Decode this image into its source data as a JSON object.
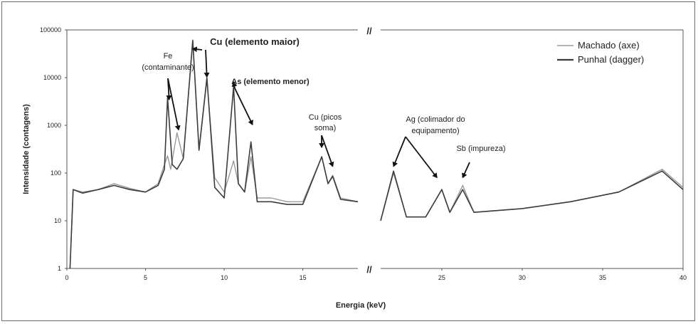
{
  "chart_data": {
    "type": "line",
    "xlabel": "Energia (keV)",
    "ylabel": "Intensidade (contagens)",
    "y_scale": "log",
    "ylim": [
      1,
      100000
    ],
    "y_ticks": [
      "1",
      "10",
      "100",
      "1000",
      "10000",
      "100000"
    ],
    "x_segments": [
      {
        "xlim": [
          0,
          18.5
        ],
        "ticks": [
          "0",
          "5",
          "10",
          "15"
        ]
      },
      {
        "xlim": [
          21.2,
          40
        ],
        "ticks": [
          "25",
          "30",
          "35",
          "40"
        ]
      }
    ],
    "break_mark": "//",
    "grid": false,
    "legend": {
      "placement": "top-right",
      "entries": [
        "Machado (axe)",
        "Punhal (dagger)"
      ]
    },
    "series": [
      {
        "name": "Machado (axe)",
        "color": "#9a9a9a",
        "points": [
          [
            0.2,
            1
          ],
          [
            0.4,
            45
          ],
          [
            1,
            40
          ],
          [
            2,
            45
          ],
          [
            3,
            60
          ],
          [
            4,
            48
          ],
          [
            5,
            40
          ],
          [
            5.8,
            60
          ],
          [
            6.2,
            150
          ],
          [
            6.4,
            230
          ],
          [
            6.6,
            120
          ],
          [
            7.0,
            700
          ],
          [
            7.4,
            200
          ],
          [
            8.0,
            62000
          ],
          [
            8.4,
            300
          ],
          [
            8.9,
            9000
          ],
          [
            9.4,
            80
          ],
          [
            10.0,
            40
          ],
          [
            10.6,
            180
          ],
          [
            10.9,
            60
          ],
          [
            11.3,
            40
          ],
          [
            11.7,
            220
          ],
          [
            12.1,
            30
          ],
          [
            13,
            30
          ],
          [
            14,
            25
          ],
          [
            15,
            25
          ],
          [
            16.2,
            220
          ],
          [
            16.6,
            60
          ],
          [
            16.9,
            90
          ],
          [
            17.4,
            30
          ],
          [
            18.5,
            25
          ],
          [
            21.2,
            10
          ],
          [
            22,
            100
          ],
          [
            22.8,
            12
          ],
          [
            24,
            12
          ],
          [
            25,
            45
          ],
          [
            25.5,
            15
          ],
          [
            26.3,
            55
          ],
          [
            27,
            15
          ],
          [
            30,
            18
          ],
          [
            33,
            25
          ],
          [
            36,
            40
          ],
          [
            38.7,
            120
          ],
          [
            40,
            50
          ]
        ]
      },
      {
        "name": "Punhal (dagger)",
        "color": "#3c3c3c",
        "points": [
          [
            0.2,
            1
          ],
          [
            0.4,
            45
          ],
          [
            1,
            38
          ],
          [
            2,
            45
          ],
          [
            3,
            55
          ],
          [
            4,
            45
          ],
          [
            5,
            40
          ],
          [
            5.8,
            55
          ],
          [
            6.2,
            120
          ],
          [
            6.4,
            3800
          ],
          [
            6.7,
            150
          ],
          [
            7.0,
            120
          ],
          [
            7.4,
            200
          ],
          [
            8.0,
            60000
          ],
          [
            8.4,
            300
          ],
          [
            8.9,
            10000
          ],
          [
            9.4,
            50
          ],
          [
            10.0,
            30
          ],
          [
            10.6,
            6500
          ],
          [
            10.9,
            60
          ],
          [
            11.3,
            40
          ],
          [
            11.7,
            450
          ],
          [
            12.1,
            25
          ],
          [
            13,
            25
          ],
          [
            14,
            22
          ],
          [
            15,
            22
          ],
          [
            16.2,
            220
          ],
          [
            16.6,
            60
          ],
          [
            16.9,
            85
          ],
          [
            17.4,
            28
          ],
          [
            18.5,
            25
          ],
          [
            21.2,
            10
          ],
          [
            22,
            110
          ],
          [
            22.8,
            12
          ],
          [
            24,
            12
          ],
          [
            25,
            45
          ],
          [
            25.5,
            15
          ],
          [
            26.3,
            45
          ],
          [
            27,
            15
          ],
          [
            30,
            18
          ],
          [
            33,
            25
          ],
          [
            36,
            40
          ],
          [
            38.7,
            110
          ],
          [
            40,
            45
          ]
        ]
      }
    ],
    "annotations": [
      {
        "label": "Fe",
        "label2": "(contaminante)",
        "arrow_to": [
          [
            6.5,
            3000
          ],
          [
            7.1,
            700
          ]
        ]
      },
      {
        "label": "Cu (elemento maior)",
        "arrow_to": [
          [
            8.0,
            35000
          ],
          [
            8.9,
            9000
          ]
        ]
      },
      {
        "label": "As (elemento menor)",
        "arrow_to": [
          [
            10.6,
            7000
          ],
          [
            11.8,
            900
          ]
        ]
      },
      {
        "label": "Cu (picos",
        "label2": "soma)",
        "arrow_to": [
          [
            16.2,
            300
          ],
          [
            16.9,
            120
          ]
        ]
      },
      {
        "label": "Ag (colimador do",
        "label2": "equipamento)",
        "arrow_to": [
          [
            22.0,
            120
          ],
          [
            24.7,
            70
          ]
        ]
      },
      {
        "label": "Sb (impureza)",
        "arrow_to": [
          [
            26.3,
            70
          ]
        ]
      }
    ]
  }
}
